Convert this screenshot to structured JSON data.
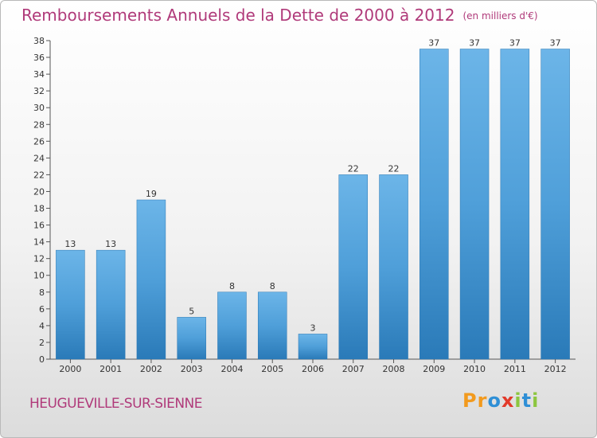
{
  "chart_data": {
    "type": "bar",
    "title": "Remboursements Annuels de la Dette de 2000 à 2012",
    "unit_note": "(en milliers d'€)",
    "xlabel": "",
    "ylabel": "",
    "categories": [
      "2000",
      "2001",
      "2002",
      "2003",
      "2004",
      "2005",
      "2006",
      "2007",
      "2008",
      "2009",
      "2010",
      "2011",
      "2012"
    ],
    "values": [
      13,
      13,
      19,
      5,
      8,
      8,
      3,
      22,
      22,
      37,
      37,
      37,
      37
    ],
    "ylim": [
      0,
      38
    ],
    "ytick_step": 2,
    "grid": false,
    "bar_color": "#4f9fd9",
    "bar_color_top": "#6cb5e8",
    "bar_color_bottom": "#2a7ab8"
  },
  "commune": "HEUGUEVILLE-SUR-SIENNE",
  "logo": {
    "letters": [
      {
        "char": "P",
        "color": "#f29a1e"
      },
      {
        "char": "r",
        "color": "#f29a1e"
      },
      {
        "char": "o",
        "color": "#2f8fd6"
      },
      {
        "char": "x",
        "color": "#e23a2a"
      },
      {
        "char": "i",
        "color": "#8cc63f"
      },
      {
        "char": "t",
        "color": "#2f8fd6"
      },
      {
        "char": "i",
        "color": "#8cc63f"
      }
    ]
  }
}
